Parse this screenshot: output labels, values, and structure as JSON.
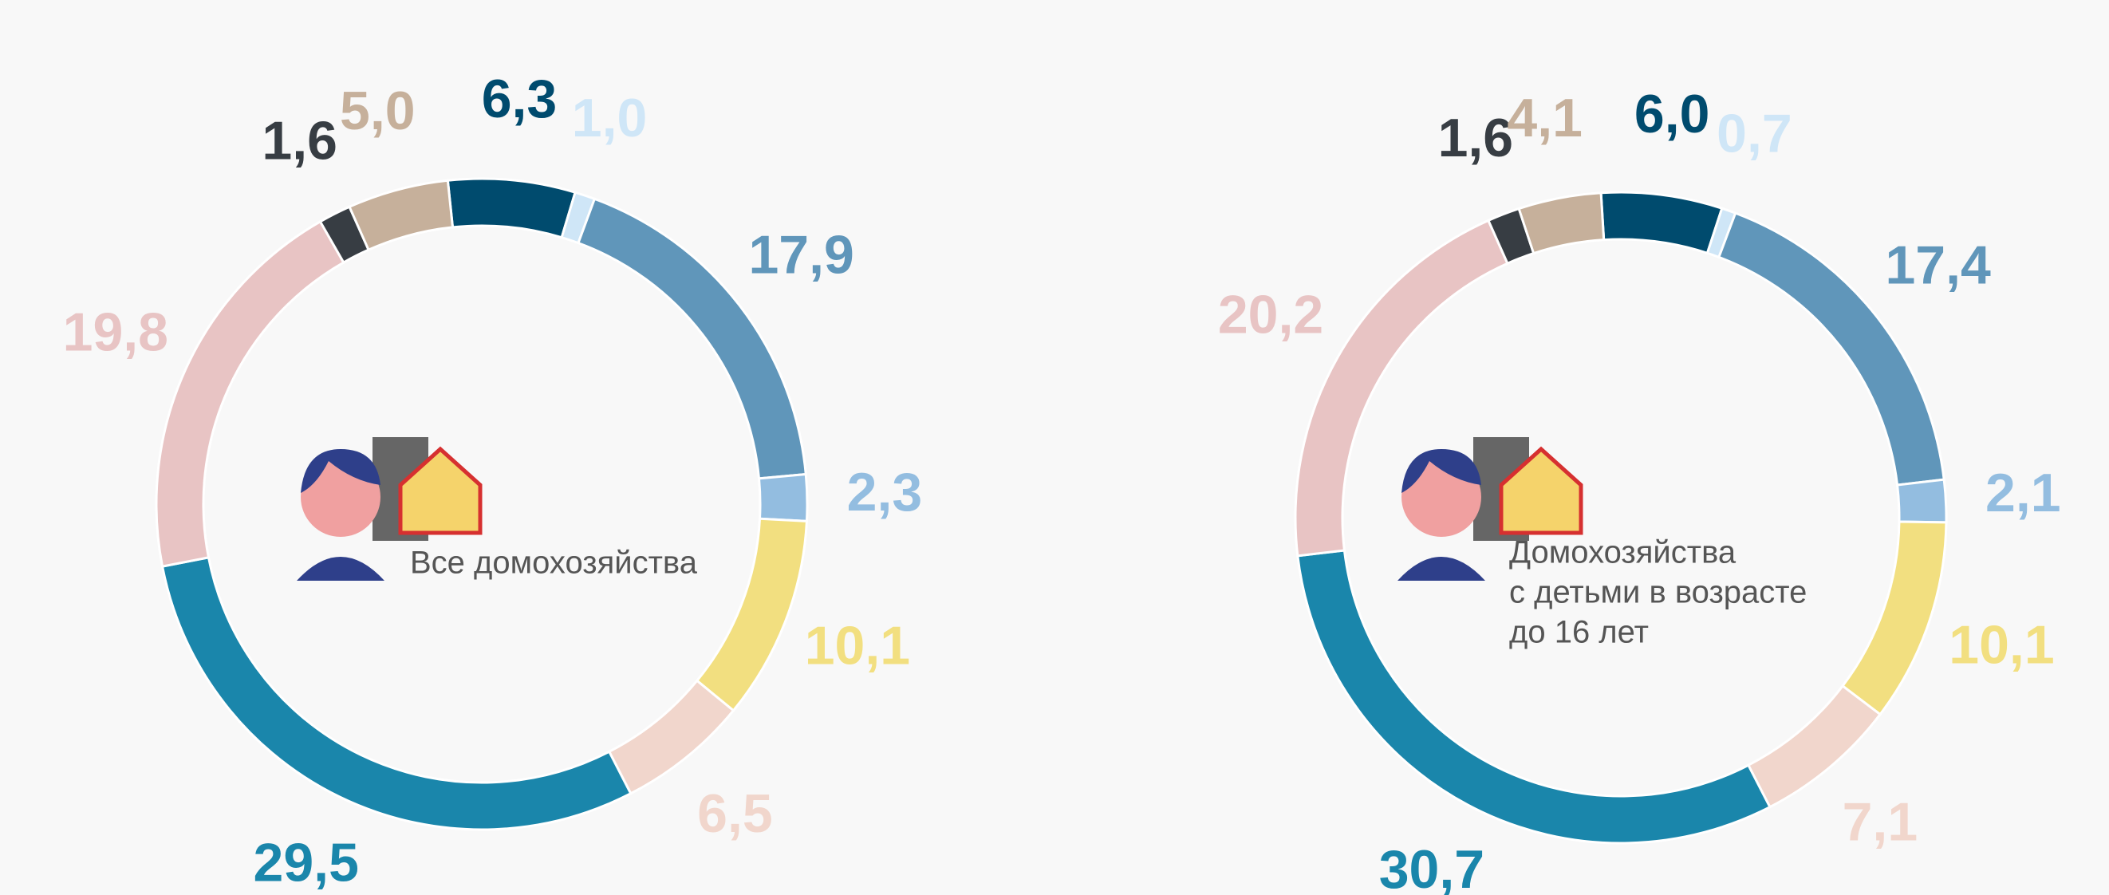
{
  "chart_data": [
    {
      "type": "donut",
      "center_text": [
        "Все домохозяйства"
      ],
      "values": [
        6.3,
        1.0,
        17.9,
        2.3,
        10.1,
        6.5,
        29.5,
        19.8,
        1.6,
        5.0
      ],
      "value_labels": [
        "6,3",
        "1,0",
        "17,9",
        "2,3",
        "10,1",
        "6,5",
        "29,5",
        "19,8",
        "1,6",
        "5,0"
      ],
      "colors": [
        "#004b6e",
        "#cfe6f7",
        "#6096ba",
        "#93bde0",
        "#f2df80",
        "#f1d6cc",
        "#1a86ab",
        "#e8c4c4",
        "#373d43",
        "#c6b09b"
      ]
    },
    {
      "type": "donut",
      "center_text": [
        "Домохозяйства",
        "с детьми в возрасте",
        "до 16 лет"
      ],
      "values": [
        6.0,
        0.7,
        17.4,
        2.1,
        10.1,
        7.1,
        30.7,
        20.2,
        1.6,
        4.1
      ],
      "value_labels": [
        "6,0",
        "0,7",
        "17,4",
        "2,1",
        "10,1",
        "7,1",
        "30,7",
        "20,2",
        "1,6",
        "4,1"
      ],
      "colors": [
        "#004b6e",
        "#cfe6f7",
        "#6096ba",
        "#93bde0",
        "#f2df80",
        "#f1d6cc",
        "#1a86ab",
        "#e8c4c4",
        "#373d43",
        "#c6b09b"
      ]
    }
  ]
}
